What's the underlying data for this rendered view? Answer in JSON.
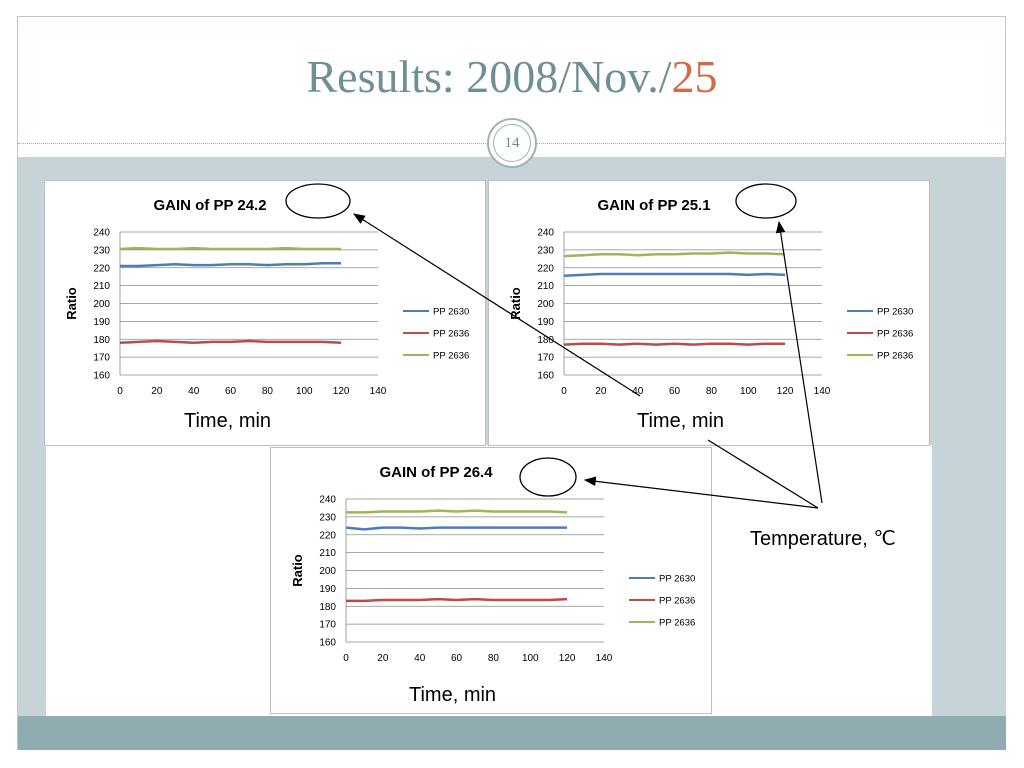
{
  "slide": {
    "title_prefix": "Results: 2008/Nov./",
    "title_accent": "25",
    "slide_number": "14",
    "annotation": "Temperature, ℃",
    "accent_color": "#d36a45",
    "title_color": "#6e8f95"
  },
  "chart_data": [
    {
      "type": "line",
      "title": "GAIN of PP 24.2",
      "xlabel": "Time, min",
      "ylabel": "Ratio",
      "xlim": [
        0,
        140
      ],
      "ylim": [
        160,
        240
      ],
      "xticks": [
        0,
        20,
        40,
        60,
        80,
        100,
        120,
        140
      ],
      "yticks": [
        160,
        170,
        180,
        190,
        200,
        210,
        220,
        230,
        240
      ],
      "grid": true,
      "legend_position": "right",
      "x": [
        0,
        10,
        20,
        30,
        40,
        50,
        60,
        70,
        80,
        90,
        100,
        110,
        120
      ],
      "series": [
        {
          "name": "PP 2630",
          "color": "#4a7ebb",
          "values": [
            221,
            221,
            221.5,
            222,
            221.5,
            221.5,
            222,
            222,
            221.5,
            222,
            222,
            222.5,
            222.5
          ]
        },
        {
          "name": "PP 2636",
          "color": "#be4b48",
          "values": [
            178,
            178.5,
            179,
            178.5,
            178,
            178.5,
            178.5,
            179,
            178.5,
            178.5,
            178.5,
            178.5,
            178
          ]
        },
        {
          "name": "PP 2636",
          "color": "#98b954",
          "values": [
            230.5,
            231,
            230.5,
            230.5,
            231,
            230.5,
            230.5,
            230.5,
            230.5,
            231,
            230.5,
            230.5,
            230.5
          ]
        }
      ]
    },
    {
      "type": "line",
      "title": "GAIN of PP 25.1",
      "xlabel": "Time, min",
      "ylabel": "Ratio",
      "xlim": [
        0,
        140
      ],
      "ylim": [
        160,
        240
      ],
      "xticks": [
        0,
        20,
        40,
        60,
        80,
        100,
        120,
        140
      ],
      "yticks": [
        160,
        170,
        180,
        190,
        200,
        210,
        220,
        230,
        240
      ],
      "grid": true,
      "legend_position": "right",
      "x": [
        0,
        10,
        20,
        30,
        40,
        50,
        60,
        70,
        80,
        90,
        100,
        110,
        120
      ],
      "series": [
        {
          "name": "PP 2630",
          "color": "#4a7ebb",
          "values": [
            215.5,
            216,
            216.5,
            216.5,
            216.5,
            216.5,
            216.5,
            216.5,
            216.5,
            216.5,
            216,
            216.5,
            216
          ]
        },
        {
          "name": "PP 2636",
          "color": "#be4b48",
          "values": [
            177,
            177.5,
            177.5,
            177,
            177.5,
            177,
            177.5,
            177,
            177.5,
            177.5,
            177,
            177.5,
            177.5
          ]
        },
        {
          "name": "PP 2636",
          "color": "#98b954",
          "values": [
            226.5,
            227,
            227.5,
            227.5,
            227,
            227.5,
            227.5,
            228,
            228,
            228.5,
            228,
            228,
            227.5
          ]
        }
      ]
    },
    {
      "type": "line",
      "title": "GAIN of PP 26.4",
      "xlabel": "Time, min",
      "ylabel": "Ratio",
      "xlim": [
        0,
        140
      ],
      "ylim": [
        160,
        240
      ],
      "xticks": [
        0,
        20,
        40,
        60,
        80,
        100,
        120,
        140
      ],
      "yticks": [
        160,
        170,
        180,
        190,
        200,
        210,
        220,
        230,
        240
      ],
      "grid": true,
      "legend_position": "right",
      "x": [
        0,
        10,
        20,
        30,
        40,
        50,
        60,
        70,
        80,
        90,
        100,
        110,
        120
      ],
      "series": [
        {
          "name": "PP 2630",
          "color": "#4a7ebb",
          "values": [
            224,
            223,
            224,
            224,
            223.5,
            224,
            224,
            224,
            224,
            224,
            224,
            224,
            224
          ]
        },
        {
          "name": "PP 2636",
          "color": "#be4b48",
          "values": [
            183,
            183,
            183.5,
            183.5,
            183.5,
            184,
            183.5,
            184,
            183.5,
            183.5,
            183.5,
            183.5,
            184
          ]
        },
        {
          "name": "PP 2636",
          "color": "#98b954",
          "values": [
            232.5,
            232.5,
            233,
            233,
            233,
            233.5,
            233,
            233.5,
            233,
            233,
            233,
            233,
            232.5
          ]
        }
      ]
    }
  ]
}
